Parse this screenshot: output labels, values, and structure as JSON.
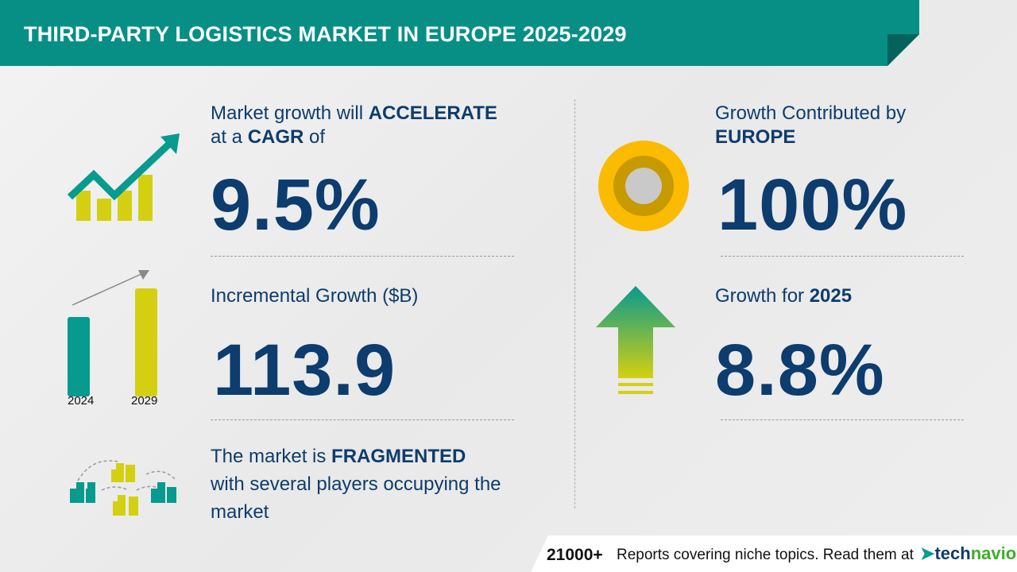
{
  "header": {
    "title": "THIRD-PARTY LOGISTICS MARKET IN EUROPE 2025-2029"
  },
  "cagr": {
    "line1_pre": "Market growth will ",
    "line1_bold": "ACCELERATE",
    "line2_pre": "at a ",
    "line2_bold": "CAGR",
    "line2_post": " of",
    "value": "9.5%"
  },
  "incremental": {
    "label": "Incremental Growth ($B)",
    "value": "113.9",
    "bar_years": [
      "2024",
      "2029"
    ]
  },
  "fragmented": {
    "line1_pre": "The market is ",
    "line1_bold": "FRAGMENTED",
    "line2": "with several players occupying the",
    "line3": "market"
  },
  "region": {
    "line1": "Growth Contributed by",
    "line2": "EUROPE",
    "value": "100%"
  },
  "growth_year": {
    "label": "Growth for ",
    "year": "2025",
    "value": "8.8%"
  },
  "footer": {
    "count": "21000+",
    "text": "Reports covering niche topics. Read them at",
    "brand_a": "tech",
    "brand_b": "navio"
  },
  "colors": {
    "teal": "#079a8e",
    "yellow": "#d4d011",
    "navy": "#0d3c6e"
  }
}
